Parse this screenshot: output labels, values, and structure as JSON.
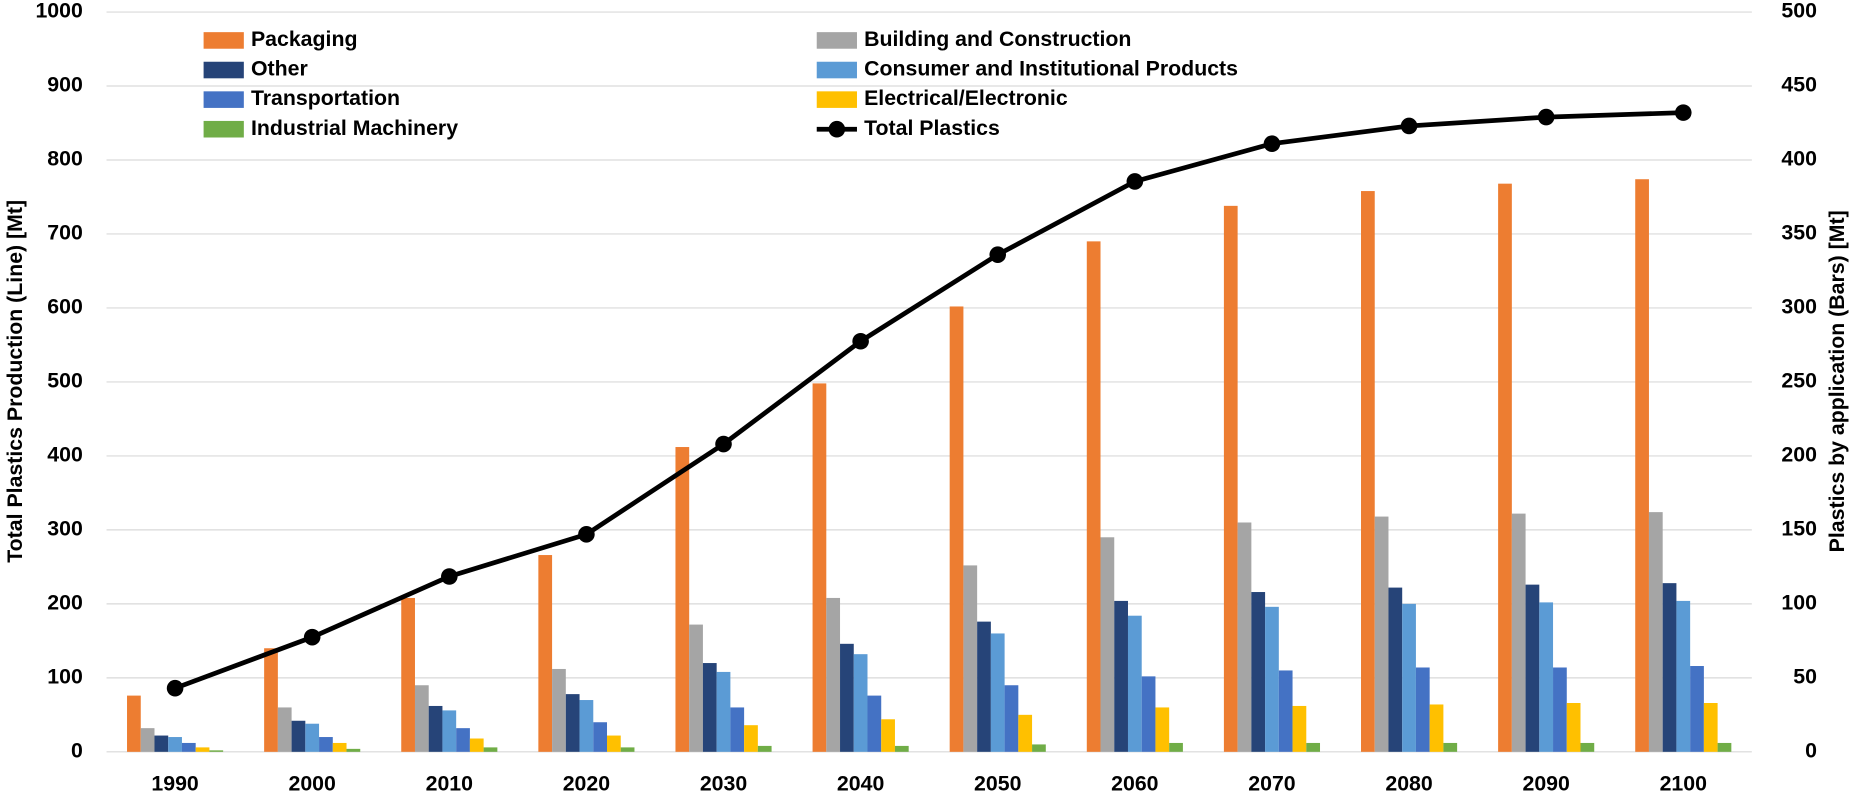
{
  "chart_data": {
    "type": "bar",
    "x_label": "",
    "y_label": "Total Plastics Production (Line) [Mt]",
    "y2_label": "Plastics by application (Bars) [Mt]",
    "categories": [
      "1990",
      "2000",
      "2010",
      "2020",
      "2030",
      "2040",
      "2050",
      "2060",
      "2070",
      "2080",
      "2090",
      "2100"
    ],
    "ylim": [
      0,
      1000
    ],
    "yticks": [
      0,
      100,
      200,
      300,
      400,
      500,
      600,
      700,
      800,
      900,
      1000
    ],
    "y2lim": [
      0,
      500
    ],
    "y2ticks": [
      0,
      50,
      100,
      150,
      200,
      250,
      300,
      350,
      400,
      450,
      500
    ],
    "grid": true,
    "series": [
      {
        "name": "Packaging",
        "color": "#ED7D31",
        "axis": "y2",
        "type": "bar",
        "values": [
          38,
          70,
          104,
          133,
          206,
          249,
          301,
          345,
          369,
          379,
          384,
          387
        ]
      },
      {
        "name": "Building and Construction",
        "color": "#A5A5A5",
        "axis": "y2",
        "type": "bar",
        "values": [
          16,
          30,
          45,
          56,
          86,
          104,
          126,
          145,
          155,
          159,
          161,
          162
        ]
      },
      {
        "name": "Other",
        "color": "#264478",
        "axis": "y2",
        "type": "bar",
        "values": [
          11,
          21,
          31,
          39,
          60,
          73,
          88,
          102,
          108,
          111,
          113,
          114
        ]
      },
      {
        "name": "Consumer and Institutional Products",
        "color": "#5B9BD5",
        "axis": "y2",
        "type": "bar",
        "values": [
          10,
          19,
          28,
          35,
          54,
          66,
          80,
          92,
          98,
          100,
          101,
          102
        ]
      },
      {
        "name": "Transportation",
        "color": "#4472C4",
        "axis": "y2",
        "type": "bar",
        "values": [
          6,
          10,
          16,
          20,
          30,
          38,
          45,
          51,
          55,
          57,
          57,
          58
        ]
      },
      {
        "name": "Electrical/Electronic",
        "color": "#FFC000",
        "axis": "y2",
        "type": "bar",
        "values": [
          3,
          6,
          9,
          11,
          18,
          22,
          25,
          30,
          31,
          32,
          33,
          33
        ]
      },
      {
        "name": "Industrial Machinery",
        "color": "#70AD47",
        "axis": "y2",
        "type": "bar",
        "values": [
          1,
          2,
          3,
          3,
          4,
          4,
          5,
          6,
          6,
          6,
          6,
          6
        ]
      },
      {
        "name": "Total Plastics",
        "color": "#000000",
        "axis": "y",
        "type": "line",
        "values": [
          86,
          155,
          237,
          294,
          416,
          555,
          672,
          771,
          822,
          846,
          858,
          864
        ]
      }
    ]
  }
}
